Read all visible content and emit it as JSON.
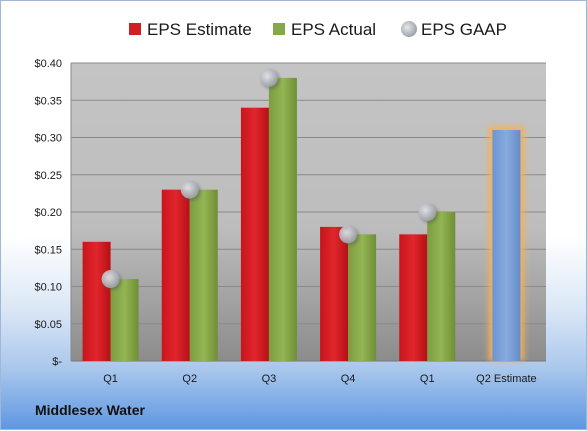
{
  "company_name": "Middlesex Water",
  "chart_data": {
    "type": "bar",
    "categories": [
      "Q1",
      "Q2",
      "Q3",
      "Q4",
      "Q1",
      "Q2 Estimate"
    ],
    "series": [
      {
        "name": "EPS Estimate",
        "color": "#d01f25",
        "values": [
          0.16,
          0.23,
          0.34,
          0.18,
          0.17,
          null
        ]
      },
      {
        "name": "EPS Actual",
        "color": "#86a84a",
        "values": [
          0.11,
          0.23,
          0.38,
          0.17,
          0.2,
          null
        ]
      },
      {
        "name": "EPS GAAP",
        "color": "#b4b8bf",
        "values": [
          0.11,
          0.23,
          0.38,
          0.17,
          0.2,
          null
        ],
        "marker": "circle"
      },
      {
        "name": "Q2 Estimate",
        "color": "#7ba1d6",
        "highlight": "#f3b15b",
        "values": [
          null,
          null,
          null,
          null,
          null,
          0.31
        ]
      }
    ],
    "legend": {
      "position": "top",
      "items": [
        "EPS Estimate",
        "EPS Actual",
        "EPS GAAP"
      ]
    },
    "yticks": [
      "$-",
      "$0.05",
      "$0.10",
      "$0.15",
      "$0.20",
      "$0.25",
      "$0.30",
      "$0.35",
      "$0.40"
    ],
    "ylim": [
      0,
      0.4
    ],
    "grid": true
  }
}
